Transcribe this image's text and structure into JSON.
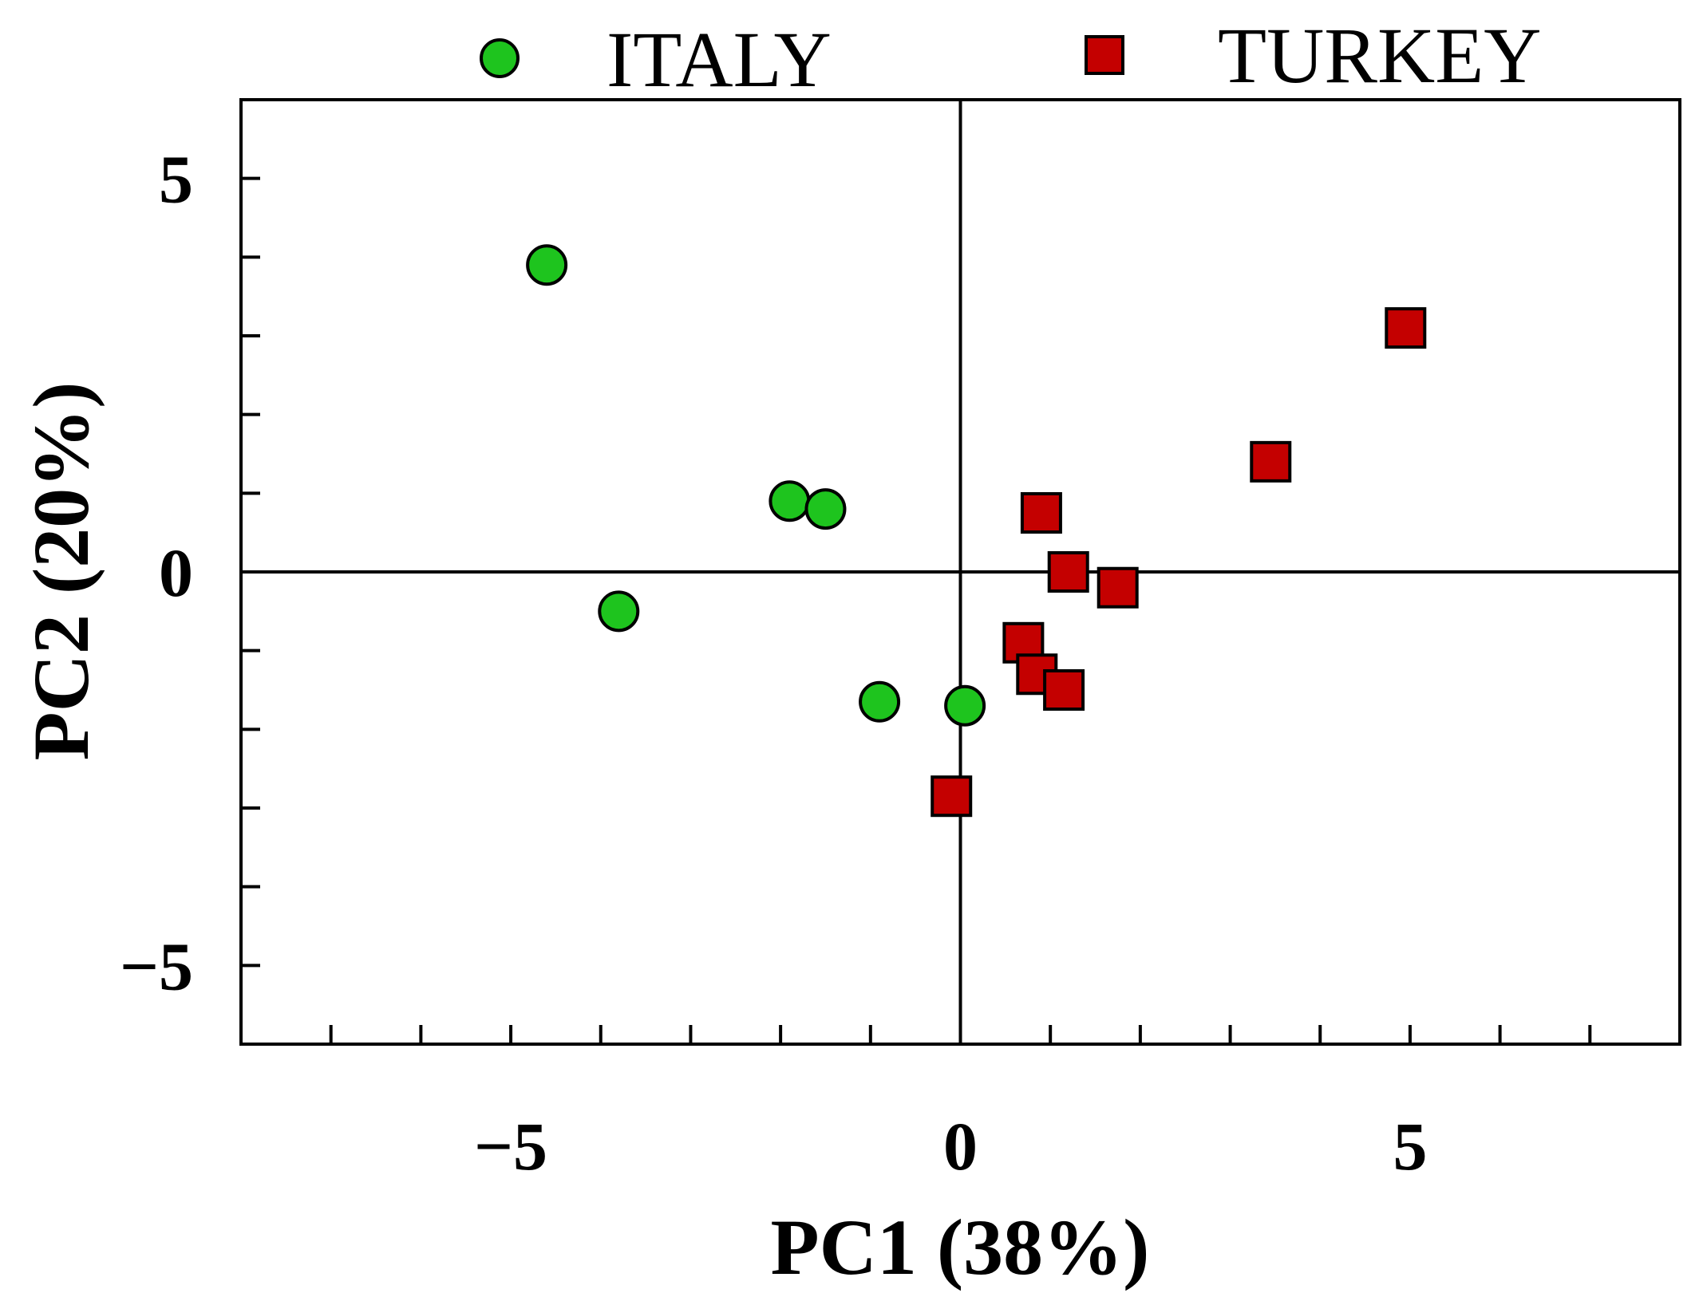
{
  "chart_data": {
    "type": "scatter",
    "title": "",
    "xlabel": "PC1 (38%)",
    "ylabel": "PC2 (20%)",
    "xlim": [
      -8,
      8
    ],
    "ylim": [
      -6,
      6
    ],
    "x_ticks": [
      -5,
      0,
      5
    ],
    "x_tick_labels": [
      "−5",
      "0",
      "5"
    ],
    "y_ticks": [
      -5,
      0,
      5
    ],
    "y_tick_labels": [
      "−5",
      "0",
      "5"
    ],
    "x_minor_ticks": [
      -7,
      -6,
      -5,
      -4,
      -3,
      -2,
      -1,
      0,
      1,
      2,
      3,
      4,
      5,
      6,
      7
    ],
    "y_minor_ticks": [
      -5,
      -4,
      -3,
      -2,
      -1,
      0,
      1,
      2,
      3,
      4,
      5
    ],
    "grid": false,
    "zero_lines": true,
    "legend_position": "top",
    "series": [
      {
        "name": "ITALY",
        "marker": "circle",
        "color": "#1ec41e",
        "points": [
          {
            "x": -4.6,
            "y": 3.9
          },
          {
            "x": -1.9,
            "y": 0.9
          },
          {
            "x": -1.5,
            "y": 0.8
          },
          {
            "x": -3.8,
            "y": -0.5
          },
          {
            "x": -0.9,
            "y": -1.65
          },
          {
            "x": 0.05,
            "y": -1.7
          }
        ]
      },
      {
        "name": "TURKEY",
        "marker": "square",
        "color": "#c40000",
        "points": [
          {
            "x": 4.95,
            "y": 3.1
          },
          {
            "x": 3.45,
            "y": 1.4
          },
          {
            "x": 0.9,
            "y": 0.75
          },
          {
            "x": 1.2,
            "y": 0.0
          },
          {
            "x": 1.75,
            "y": -0.2
          },
          {
            "x": 0.7,
            "y": -0.9
          },
          {
            "x": 0.85,
            "y": -1.3
          },
          {
            "x": 1.15,
            "y": -1.5
          },
          {
            "x": -0.1,
            "y": -2.85
          }
        ]
      }
    ]
  }
}
